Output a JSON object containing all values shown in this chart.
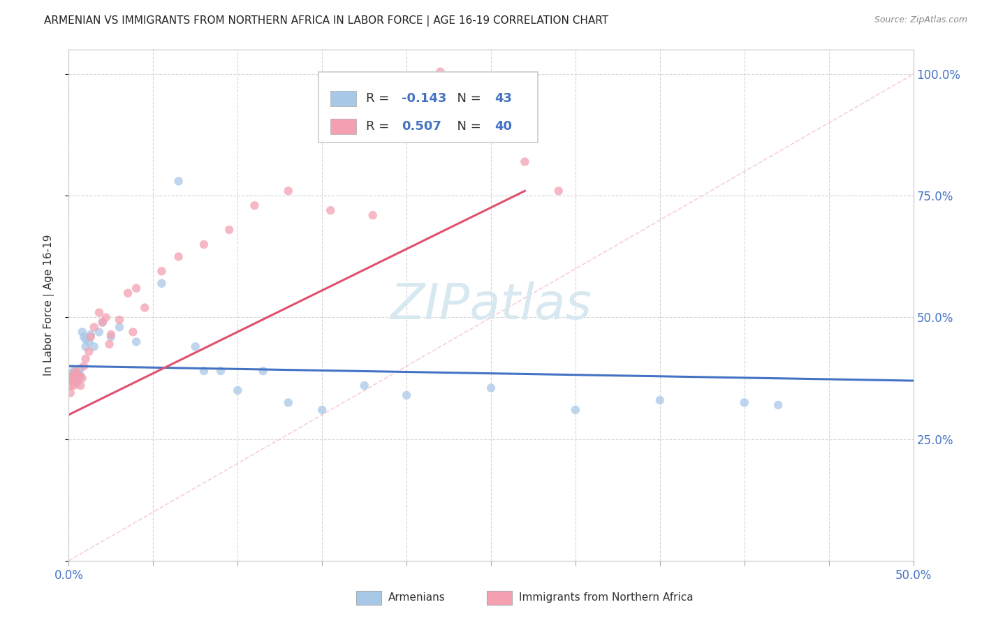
{
  "title": "ARMENIAN VS IMMIGRANTS FROM NORTHERN AFRICA IN LABOR FORCE | AGE 16-19 CORRELATION CHART",
  "source": "Source: ZipAtlas.com",
  "ylabel": "In Labor Force | Age 16-19",
  "legend_armenians": "Armenians",
  "legend_northafrica": "Immigrants from Northern Africa",
  "R_armenians": -0.143,
  "N_armenians": 43,
  "R_northafrica": 0.507,
  "N_northafrica": 40,
  "armenian_color": "#a8c8e8",
  "northafrica_color": "#f4a0b0",
  "armenian_line_color": "#4472c4",
  "northafrica_line_color": "#e05070",
  "xmin": 0.0,
  "xmax": 0.5,
  "ymin": 0.0,
  "ymax": 1.05,
  "background_color": "#ffffff",
  "grid_color": "#cccccc",
  "yticks": [
    0.0,
    0.25,
    0.5,
    0.75,
    1.0
  ],
  "ytick_labels_right": [
    "",
    "25.0%",
    "50.0%",
    "75.0%",
    "100.0%"
  ],
  "title_color": "#222222",
  "source_color": "#888888",
  "tick_label_color": "#4472c4",
  "watermark_text": "ZIPatlas",
  "watermark_color": "#d8e8f0",
  "ref_line_color": "#f0b0c0",
  "legend_border_color": "#cccccc"
}
